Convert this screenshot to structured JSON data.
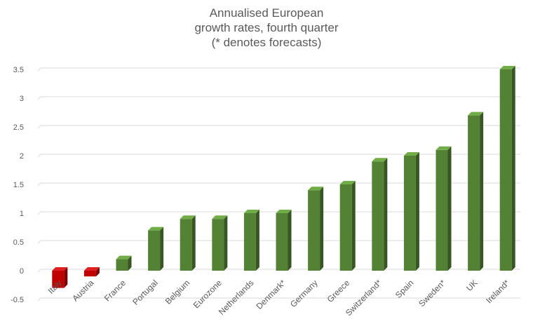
{
  "chart_data": {
    "type": "bar",
    "title_lines": [
      "Annualised European",
      "growth rates, fourth quarter",
      "(* denotes forecasts)"
    ],
    "categories": [
      "Italy",
      "Austria",
      "France",
      "Portugal",
      "Belgium",
      "Eurozone",
      "Netherlands",
      "Denmark*",
      "Germany",
      "Greece",
      "Switzerland*",
      "Spain",
      "Sweden*",
      "UK",
      "Ireland*"
    ],
    "values": [
      -0.3,
      -0.1,
      0.2,
      0.7,
      0.9,
      0.9,
      1.0,
      1.0,
      1.4,
      1.5,
      1.9,
      2.0,
      2.1,
      2.7,
      3.5
    ],
    "ylim": [
      -0.5,
      3.5
    ],
    "yticks": [
      -0.5,
      0,
      0.5,
      1,
      1.5,
      2,
      2.5,
      3,
      3.5
    ],
    "ytick_labels": [
      "-0.5",
      "0",
      "0.5",
      "1",
      "1.5",
      "2",
      "2.5",
      "3",
      "3.5"
    ],
    "grid": true,
    "legend": "none",
    "colors": {
      "positive_front": "#548235",
      "positive_side": "#375623",
      "positive_top": "#70AD47",
      "negative_front": "#C00000",
      "negative_side": "#7F0000",
      "negative_top": "#E02020",
      "grid": "#D9D9D9",
      "text": "#595959"
    }
  }
}
